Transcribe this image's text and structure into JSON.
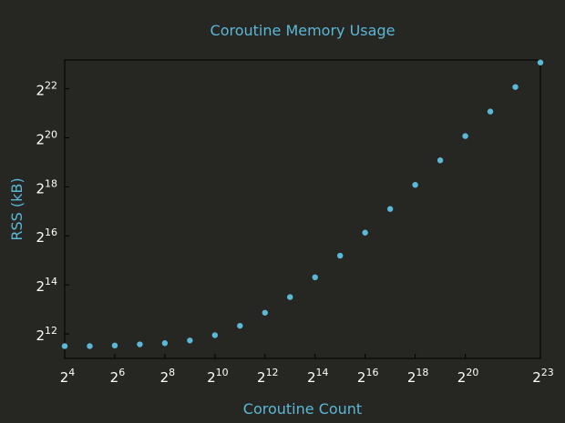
{
  "colors": {
    "background": "#262622",
    "frame": "#000000",
    "accent": "#5bb8d6",
    "tick_text": "#ffffff"
  },
  "chart_data": {
    "type": "scatter",
    "title": "Coroutine Memory Usage",
    "xlabel": "Coroutine Count",
    "ylabel": "RSS (kB)",
    "x_scale": "log2",
    "y_scale": "log2",
    "xlim": [
      16,
      8388608
    ],
    "ylim": [
      2048,
      9437184
    ],
    "grid": false,
    "legend": "none",
    "x_ticks": [
      {
        "value": 16,
        "base": "2",
        "exp": "4"
      },
      {
        "value": 64,
        "base": "2",
        "exp": "6"
      },
      {
        "value": 256,
        "base": "2",
        "exp": "8"
      },
      {
        "value": 1024,
        "base": "2",
        "exp": "10"
      },
      {
        "value": 4096,
        "base": "2",
        "exp": "12"
      },
      {
        "value": 16384,
        "base": "2",
        "exp": "14"
      },
      {
        "value": 65536,
        "base": "2",
        "exp": "16"
      },
      {
        "value": 262144,
        "base": "2",
        "exp": "18"
      },
      {
        "value": 1048576,
        "base": "2",
        "exp": "20"
      },
      {
        "value": 8388608,
        "base": "2",
        "exp": "23"
      }
    ],
    "y_ticks": [
      {
        "value": 4096,
        "base": "2",
        "exp": "12"
      },
      {
        "value": 16384,
        "base": "2",
        "exp": "14"
      },
      {
        "value": 65536,
        "base": "2",
        "exp": "16"
      },
      {
        "value": 262144,
        "base": "2",
        "exp": "18"
      },
      {
        "value": 1048576,
        "base": "2",
        "exp": "20"
      },
      {
        "value": 4194304,
        "base": "2",
        "exp": "22"
      }
    ],
    "series": [
      {
        "x": [
          16,
          32,
          64,
          128,
          256,
          512,
          1024,
          2048,
          4096,
          8192,
          16384,
          32768,
          65536,
          131072,
          262144,
          524288,
          1048576,
          2097152,
          4194304,
          8388608
        ],
        "y": [
          2900,
          2900,
          2950,
          3050,
          3150,
          3400,
          3950,
          5150,
          7450,
          11600,
          20300,
          37400,
          71700,
          140000,
          277000,
          554000,
          1100000,
          2200000,
          4400000,
          8800000
        ]
      }
    ]
  }
}
